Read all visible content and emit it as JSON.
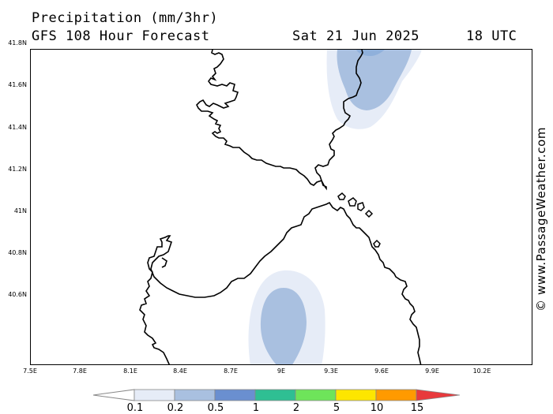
{
  "header": {
    "title": "Precipitation (mm/3hr)",
    "model": "GFS 108 Hour Forecast",
    "date": "Sat 21 Jun 2025",
    "time": "18 UTC"
  },
  "credit": "© www.PassageWeather.com",
  "map": {
    "lat_labels": [
      "41.8N",
      "41.6N",
      "41.4N",
      "41.2N",
      "41N",
      "40.8N",
      "40.6N"
    ],
    "lon_labels": [
      "7.5E",
      "7.8E",
      "8.1E",
      "8.4E",
      "8.7E",
      "9E",
      "9.3E",
      "9.6E",
      "9.9E",
      "10.2E"
    ],
    "precip_areas": [
      {
        "region": "northeast Corsica / Tyrrhenian Sea",
        "max_band": "0.2-0.5"
      },
      {
        "region": "central Sardinia",
        "max_band": "0.2-0.5"
      }
    ]
  },
  "legend": {
    "labels": [
      "0.1",
      "0.2",
      "0.5",
      "1",
      "2",
      "5",
      "10",
      "15"
    ],
    "colors": [
      "#e6ecf7",
      "#a9c0e0",
      "#6a8fd0",
      "#2fbf93",
      "#6ee45a",
      "#fde600",
      "#ff9a00",
      "#e8393c"
    ]
  }
}
